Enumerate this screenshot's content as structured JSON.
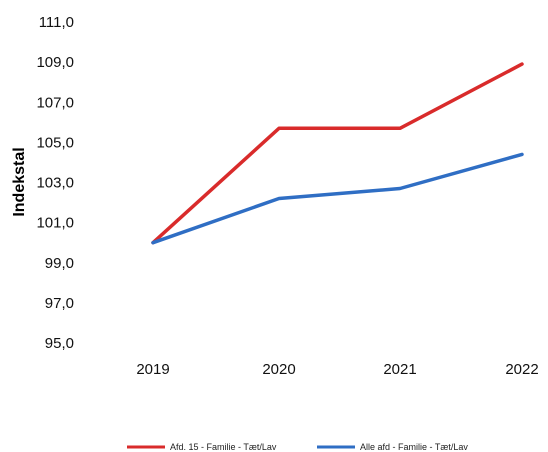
{
  "chart_data": {
    "type": "line",
    "categories": [
      "2019",
      "2020",
      "2021",
      "2022"
    ],
    "ylabel": "Indekstal",
    "xlabel": "",
    "ylim": [
      95.0,
      111.0
    ],
    "yticks": [
      "95,0",
      "97,0",
      "99,0",
      "101,0",
      "103,0",
      "105,0",
      "107,0",
      "109,0",
      "111,0"
    ],
    "grid": false,
    "legend_position": "bottom",
    "series": [
      {
        "name": "Afd. 15 - Familie - Tæt/Lav",
        "color": "#d92b2b",
        "values": [
          100.0,
          105.7,
          105.7,
          108.9
        ]
      },
      {
        "name": "Alle afd - Familie - Tæt/Lav",
        "color": "#2f6ec4",
        "values": [
          100.0,
          102.2,
          102.7,
          104.4
        ]
      }
    ]
  }
}
